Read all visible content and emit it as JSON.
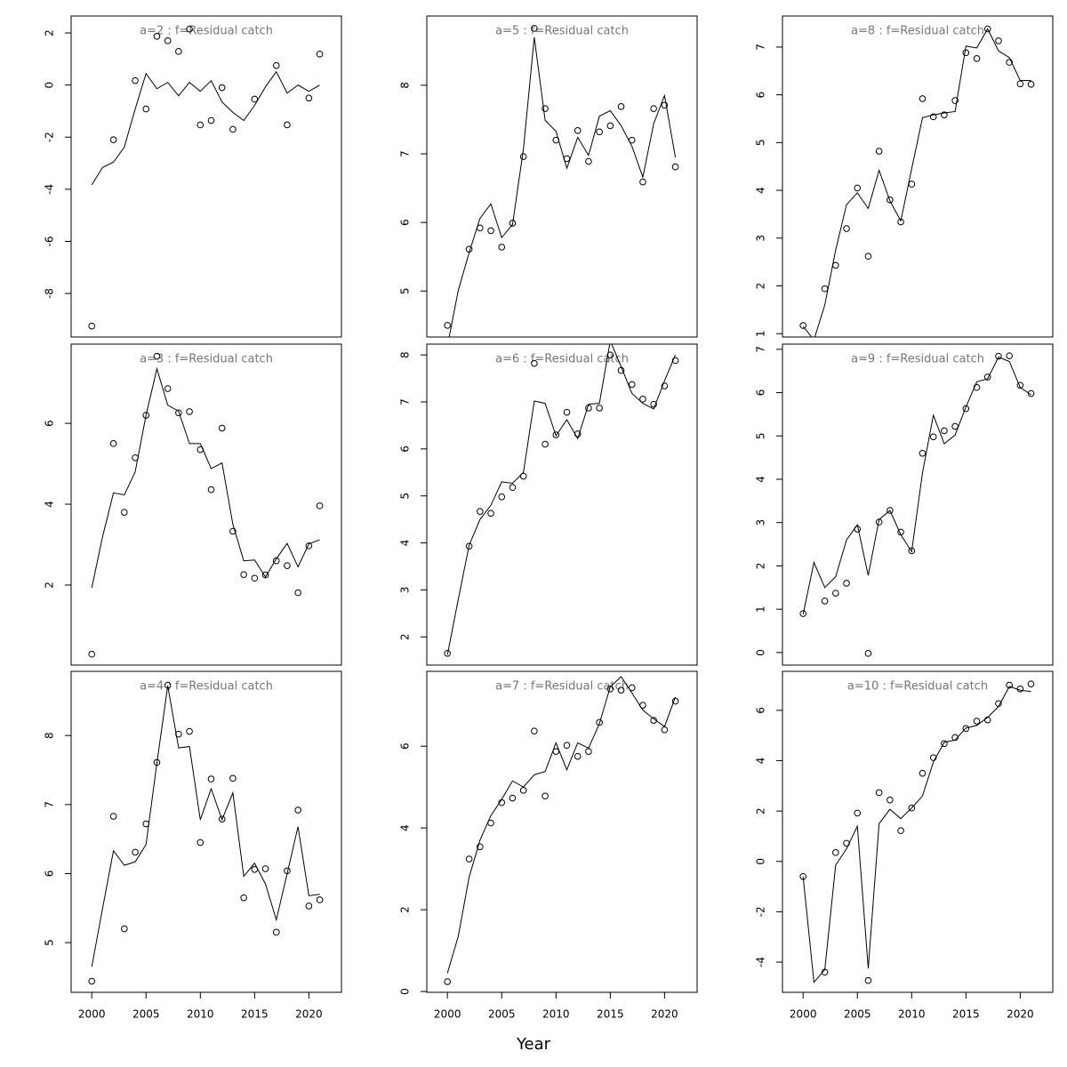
{
  "xlabel": "Year",
  "chart_data": [
    {
      "type": "line",
      "title": "a=2  :  f=Residual catch",
      "x": [
        2000,
        2001,
        2002,
        2003,
        2004,
        2005,
        2006,
        2007,
        2008,
        2009,
        2010,
        2011,
        2012,
        2013,
        2014,
        2015,
        2016,
        2017,
        2018,
        2019,
        2020,
        2021
      ],
      "xlim": [
        1998.1,
        2023.0
      ],
      "ylim": [
        -9.67,
        2.65
      ],
      "yticks": [
        -8,
        -6,
        -4,
        -2,
        0,
        2
      ],
      "series": [
        {
          "type": "scatter",
          "color": "#000000",
          "values": [
            -9.25,
            null,
            -2.1,
            null,
            0.17,
            -0.92,
            1.87,
            1.7,
            1.29,
            2.15,
            -1.53,
            -1.36,
            -0.1,
            -1.7,
            null,
            -0.54,
            null,
            0.75,
            -1.53,
            null,
            -0.5,
            1.19
          ]
        },
        {
          "type": "line",
          "color": "#000000",
          "values": [
            -3.83,
            -3.16,
            -2.96,
            -2.38,
            -0.92,
            0.44,
            -0.14,
            0.1,
            -0.41,
            0.1,
            -0.24,
            0.17,
            -0.65,
            -1.05,
            -1.36,
            -0.78,
            -0.07,
            0.51,
            -0.31,
            0,
            -0.24,
            0
          ]
        }
      ]
    },
    {
      "type": "line",
      "title": "a=3  :  f=Residual catch",
      "x": [
        2000,
        2001,
        2002,
        2003,
        2004,
        2005,
        2006,
        2007,
        2008,
        2009,
        2010,
        2011,
        2012,
        2013,
        2014,
        2015,
        2016,
        2017,
        2018,
        2019,
        2020,
        2021
      ],
      "xlim": [
        1998.1,
        2023.0
      ],
      "ylim": [
        0.02,
        7.96
      ],
      "yticks": [
        2,
        4,
        6
      ],
      "series": [
        {
          "type": "scatter",
          "color": "#000000",
          "values": [
            0.29,
            null,
            5.5,
            3.8,
            5.15,
            6.2,
            7.66,
            6.86,
            6.26,
            6.29,
            5.35,
            4.36,
            5.88,
            3.33,
            2.26,
            2.17,
            2.25,
            2.6,
            2.48,
            1.81,
            2.97,
            3.96
          ]
        },
        {
          "type": "line",
          "color": "#000000",
          "values": [
            1.93,
            3.2,
            4.28,
            4.23,
            4.8,
            6.2,
            7.35,
            6.45,
            6.3,
            5.5,
            5.5,
            4.88,
            5.02,
            3.5,
            2.6,
            2.62,
            2.2,
            2.65,
            3.03,
            2.45,
            3.02,
            3.12
          ]
        }
      ]
    },
    {
      "type": "line",
      "title": "a=4  :  f=Residual catch",
      "x": [
        2000,
        2001,
        2002,
        2003,
        2004,
        2005,
        2006,
        2007,
        2008,
        2009,
        2010,
        2011,
        2012,
        2013,
        2014,
        2015,
        2016,
        2017,
        2018,
        2019,
        2020,
        2021
      ],
      "xlim": [
        1998.1,
        2023.0
      ],
      "xticks": [
        2000,
        2005,
        2010,
        2015,
        2020
      ],
      "ylim": [
        4.28,
        8.93
      ],
      "yticks": [
        5,
        6,
        7,
        8
      ],
      "series": [
        {
          "type": "scatter",
          "color": "#000000",
          "values": [
            4.44,
            null,
            6.83,
            5.2,
            6.31,
            6.72,
            7.61,
            8.73,
            8.02,
            8.06,
            6.45,
            7.37,
            6.79,
            7.38,
            5.65,
            6.06,
            6.07,
            5.15,
            6.04,
            6.92,
            5.53,
            5.62
          ]
        },
        {
          "type": "line",
          "color": "#000000",
          "values": [
            4.65,
            5.5,
            6.33,
            6.12,
            6.17,
            6.42,
            7.6,
            8.72,
            7.82,
            7.84,
            6.78,
            7.23,
            6.78,
            7.17,
            5.96,
            6.15,
            5.85,
            5.33,
            6.0,
            6.68,
            5.68,
            5.7
          ]
        }
      ]
    },
    {
      "type": "line",
      "title": "a=5  :  f=Residual catch",
      "x": [
        2000,
        2001,
        2002,
        2003,
        2004,
        2005,
        2006,
        2007,
        2008,
        2009,
        2010,
        2011,
        2012,
        2013,
        2014,
        2015,
        2016,
        2017,
        2018,
        2019,
        2020,
        2021
      ],
      "xlim": [
        1998.1,
        2023.0
      ],
      "ylim": [
        4.33,
        9.01
      ],
      "yticks": [
        5,
        6,
        7,
        8
      ],
      "series": [
        {
          "type": "scatter",
          "color": "#000000",
          "values": [
            4.5,
            null,
            5.61,
            5.92,
            5.88,
            5.64,
            5.99,
            6.96,
            8.83,
            7.66,
            7.2,
            6.93,
            7.34,
            6.89,
            7.32,
            7.41,
            7.69,
            7.2,
            6.59,
            7.66,
            7.71,
            6.81
          ]
        },
        {
          "type": "line",
          "color": "#000000",
          "values": [
            4.2,
            5.01,
            5.56,
            6.06,
            6.27,
            5.78,
            5.97,
            7.07,
            8.7,
            7.49,
            7.33,
            6.79,
            7.24,
            6.98,
            7.55,
            7.63,
            7.41,
            7.11,
            6.66,
            7.44,
            7.85,
            6.95
          ]
        }
      ]
    },
    {
      "type": "line",
      "title": "a=6  :  f=Residual catch",
      "x": [
        2000,
        2001,
        2002,
        2003,
        2004,
        2005,
        2006,
        2007,
        2008,
        2009,
        2010,
        2011,
        2012,
        2013,
        2014,
        2015,
        2016,
        2017,
        2018,
        2019,
        2020,
        2021
      ],
      "xlim": [
        1998.1,
        2023.0
      ],
      "ylim": [
        1.4,
        8.23
      ],
      "yticks": [
        2,
        3,
        4,
        5,
        6,
        7,
        8
      ],
      "series": [
        {
          "type": "scatter",
          "color": "#000000",
          "values": [
            1.65,
            null,
            3.93,
            4.67,
            4.63,
            4.98,
            5.18,
            5.42,
            7.82,
            6.1,
            6.3,
            6.78,
            6.32,
            6.87,
            6.87,
            8.0,
            7.67,
            7.37,
            7.06,
            6.95,
            7.34,
            7.88
          ]
        },
        {
          "type": "line",
          "color": "#000000",
          "values": [
            1.62,
            2.8,
            3.95,
            4.5,
            4.8,
            5.3,
            5.27,
            5.5,
            7.02,
            6.97,
            6.28,
            6.62,
            6.22,
            6.95,
            6.97,
            8.3,
            7.75,
            7.18,
            6.97,
            6.85,
            7.45,
            8.0
          ]
        }
      ]
    },
    {
      "type": "line",
      "title": "a=7  :  f=Residual catch",
      "x": [
        2000,
        2001,
        2002,
        2003,
        2004,
        2005,
        2006,
        2007,
        2008,
        2009,
        2010,
        2011,
        2012,
        2013,
        2014,
        2015,
        2016,
        2017,
        2018,
        2019,
        2020,
        2021
      ],
      "xlim": [
        1998.1,
        2023.0
      ],
      "xticks": [
        2000,
        2005,
        2010,
        2015,
        2020
      ],
      "ylim": [
        -0.02,
        7.83
      ],
      "yticks": [
        0,
        2,
        4,
        6
      ],
      "series": [
        {
          "type": "scatter",
          "color": "#000000",
          "values": [
            0.24,
            null,
            3.24,
            3.54,
            4.12,
            4.62,
            4.73,
            4.92,
            6.37,
            4.78,
            5.87,
            6.02,
            5.75,
            5.87,
            6.58,
            7.4,
            7.37,
            7.43,
            7.0,
            6.63,
            6.4,
            7.1
          ]
        },
        {
          "type": "line",
          "color": "#000000",
          "values": [
            0.45,
            1.35,
            2.8,
            3.7,
            4.3,
            4.7,
            5.15,
            5.0,
            5.3,
            5.38,
            6.08,
            5.42,
            6.08,
            5.95,
            6.55,
            7.45,
            7.7,
            7.3,
            6.88,
            6.67,
            6.48,
            7.2
          ]
        }
      ]
    },
    {
      "type": "line",
      "title": "a=8  :  f=Residual catch",
      "x": [
        2000,
        2001,
        2002,
        2003,
        2004,
        2005,
        2006,
        2007,
        2008,
        2009,
        2010,
        2011,
        2012,
        2013,
        2014,
        2015,
        2016,
        2017,
        2018,
        2019,
        2020,
        2021
      ],
      "xlim": [
        1998.1,
        2023.0
      ],
      "ylim": [
        0.93,
        7.65
      ],
      "yticks": [
        1,
        2,
        3,
        4,
        5,
        6,
        7
      ],
      "series": [
        {
          "type": "scatter",
          "color": "#000000",
          "values": [
            1.17,
            null,
            1.94,
            2.43,
            3.2,
            4.05,
            2.62,
            4.82,
            3.8,
            3.34,
            4.13,
            5.92,
            5.54,
            5.58,
            5.88,
            6.88,
            6.76,
            7.38,
            7.13,
            6.68,
            6.23,
            6.22
          ]
        },
        {
          "type": "line",
          "color": "#000000",
          "values": [
            1.15,
            0.87,
            1.6,
            2.75,
            3.7,
            3.95,
            3.62,
            4.42,
            3.78,
            3.36,
            4.45,
            5.52,
            5.58,
            5.62,
            5.65,
            7.02,
            6.98,
            7.38,
            6.92,
            6.78,
            6.3,
            6.3
          ]
        }
      ]
    },
    {
      "type": "line",
      "title": "a=9  :  f=Residual catch",
      "x": [
        2000,
        2001,
        2002,
        2003,
        2004,
        2005,
        2006,
        2007,
        2008,
        2009,
        2010,
        2011,
        2012,
        2013,
        2014,
        2015,
        2016,
        2017,
        2018,
        2019,
        2020,
        2021
      ],
      "xlim": [
        1998.1,
        2023.0
      ],
      "ylim": [
        -0.29,
        7.12
      ],
      "yticks": [
        0,
        1,
        2,
        3,
        4,
        5,
        6,
        7
      ],
      "series": [
        {
          "type": "scatter",
          "color": "#000000",
          "values": [
            0.9,
            null,
            1.19,
            1.37,
            1.6,
            2.85,
            -0.02,
            3.01,
            3.28,
            2.78,
            2.35,
            4.6,
            4.98,
            5.12,
            5.22,
            5.63,
            6.12,
            6.36,
            6.84,
            6.85,
            6.17,
            5.98
          ]
        },
        {
          "type": "line",
          "color": "#000000",
          "values": [
            0.88,
            2.08,
            1.5,
            1.75,
            2.6,
            2.95,
            1.78,
            3.07,
            3.28,
            2.72,
            2.33,
            4.15,
            5.48,
            4.82,
            5.02,
            5.67,
            6.25,
            6.32,
            6.82,
            6.72,
            6.12,
            5.95
          ]
        }
      ]
    },
    {
      "type": "line",
      "title": "a=10  :  f=Residual catch",
      "x": [
        2000,
        2001,
        2002,
        2003,
        2004,
        2005,
        2006,
        2007,
        2008,
        2009,
        2010,
        2011,
        2012,
        2013,
        2014,
        2015,
        2016,
        2017,
        2018,
        2019,
        2020,
        2021
      ],
      "xlim": [
        1998.1,
        2023.0
      ],
      "xticks": [
        2000,
        2005,
        2010,
        2015,
        2020
      ],
      "ylim": [
        -5.2,
        7.55
      ],
      "yticks": [
        -4,
        -2,
        0,
        2,
        4,
        6
      ],
      "series": [
        {
          "type": "scatter",
          "color": "#000000",
          "values": [
            -0.6,
            null,
            -4.4,
            0.35,
            0.72,
            1.92,
            -4.73,
            2.73,
            2.44,
            1.22,
            2.12,
            3.5,
            4.12,
            4.68,
            4.92,
            5.28,
            5.57,
            5.62,
            6.27,
            7.0,
            6.85,
            7.05
          ]
        },
        {
          "type": "line",
          "color": "#000000",
          "values": [
            -0.6,
            -4.8,
            -4.3,
            -0.15,
            0.5,
            1.4,
            -4.25,
            1.5,
            2.07,
            1.7,
            2.12,
            2.6,
            3.95,
            4.73,
            4.82,
            5.3,
            5.4,
            5.72,
            6.15,
            6.95,
            6.8,
            6.75
          ]
        }
      ]
    }
  ]
}
